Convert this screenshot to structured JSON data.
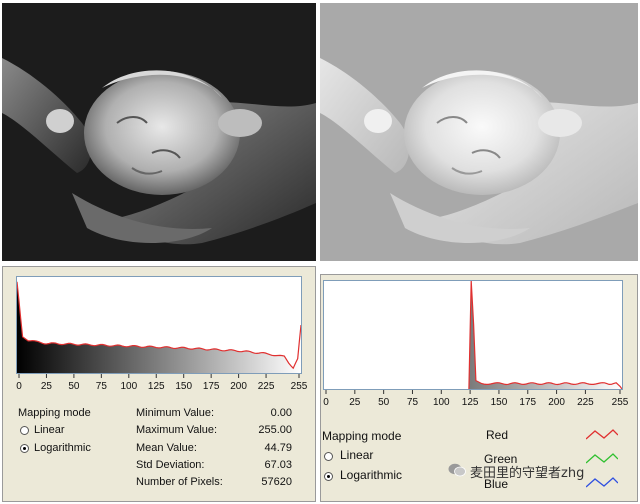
{
  "left_panel": {
    "mapping_mode_label": "Mapping mode",
    "options": [
      {
        "label": "Linear",
        "selected": false
      },
      {
        "label": "Logarithmic",
        "selected": true
      }
    ],
    "axis_ticks": [
      "0",
      "25",
      "50",
      "75",
      "100",
      "125",
      "150",
      "175",
      "200",
      "225",
      "255"
    ],
    "stats": [
      {
        "label": "Minimum Value:",
        "value": "0.00"
      },
      {
        "label": "Maximum Value:",
        "value": "255.00"
      },
      {
        "label": "Mean Value:",
        "value": "44.79"
      },
      {
        "label": "Std Deviation:",
        "value": "67.03"
      },
      {
        "label": "Number of Pixels:",
        "value": "57620"
      }
    ]
  },
  "right_panel": {
    "mapping_mode_label": "Mapping mode",
    "options": [
      {
        "label": "Linear",
        "selected": false
      },
      {
        "label": "Logarithmic",
        "selected": true
      }
    ],
    "axis_ticks": [
      "0",
      "25",
      "50",
      "75",
      "100",
      "125",
      "150",
      "175",
      "200",
      "225",
      "255"
    ],
    "legend": [
      {
        "label": "Red",
        "color": "#e03030"
      },
      {
        "label": "Green",
        "color": "#30c030"
      },
      {
        "label": "Blue",
        "color": "#3050e0"
      }
    ]
  },
  "watermark": "麦田里的守望者zhg",
  "colors": {
    "histogram_line": "#e03030",
    "panel_bg": "#ece9d8"
  },
  "chart_data": [
    {
      "type": "area",
      "title": "",
      "xlim": [
        0,
        255
      ],
      "x": [
        0,
        5,
        10,
        25,
        50,
        75,
        100,
        125,
        150,
        175,
        200,
        225,
        240,
        248,
        252,
        255
      ],
      "values": [
        0.95,
        0.38,
        0.34,
        0.31,
        0.3,
        0.29,
        0.28,
        0.27,
        0.26,
        0.245,
        0.23,
        0.2,
        0.17,
        0.05,
        0.15,
        0.5
      ],
      "series": [
        {
          "name": "Red",
          "color": "#e03030"
        }
      ]
    },
    {
      "type": "area",
      "title": "",
      "xlim": [
        0,
        255
      ],
      "x": [
        124,
        126,
        128,
        130,
        135,
        150,
        175,
        200,
        225,
        240,
        250,
        255
      ],
      "values": [
        0.0,
        1.0,
        0.6,
        0.08,
        0.05,
        0.05,
        0.05,
        0.05,
        0.05,
        0.05,
        0.05,
        0.0
      ],
      "series": [
        {
          "name": "Red",
          "color": "#e03030"
        }
      ]
    }
  ]
}
